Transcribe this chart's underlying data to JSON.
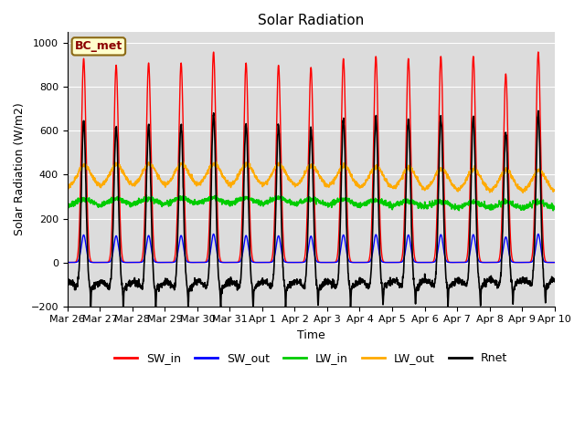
{
  "title": "Solar Radiation",
  "ylabel": "Solar Radiation (W/m2)",
  "xlabel": "Time",
  "ylim": [
    -200,
    1050
  ],
  "yticks": [
    -200,
    0,
    200,
    400,
    600,
    800,
    1000
  ],
  "xtick_labels": [
    "Mar 26",
    "Mar 27",
    "Mar 28",
    "Mar 29",
    "Mar 30",
    "Mar 31",
    "Apr 1",
    "Apr 2",
    "Apr 3",
    "Apr 4",
    "Apr 5",
    "Apr 6",
    "Apr 7",
    "Apr 8",
    "Apr 9",
    "Apr 10"
  ],
  "station_label": "BC_met",
  "plot_bg_color": "#dcdcdc",
  "fig_bg_color": "#ffffff",
  "colors": {
    "SW_in": "#ff0000",
    "SW_out": "#0000ff",
    "LW_in": "#00cc00",
    "LW_out": "#ffaa00",
    "Rnet": "#000000"
  },
  "linewidths": {
    "SW_in": 1.0,
    "SW_out": 1.0,
    "LW_in": 1.2,
    "LW_out": 1.2,
    "Rnet": 1.2
  },
  "grid_color": "#ffffff",
  "title_fontsize": 11,
  "label_fontsize": 9,
  "tick_fontsize": 8,
  "legend_fontsize": 9
}
